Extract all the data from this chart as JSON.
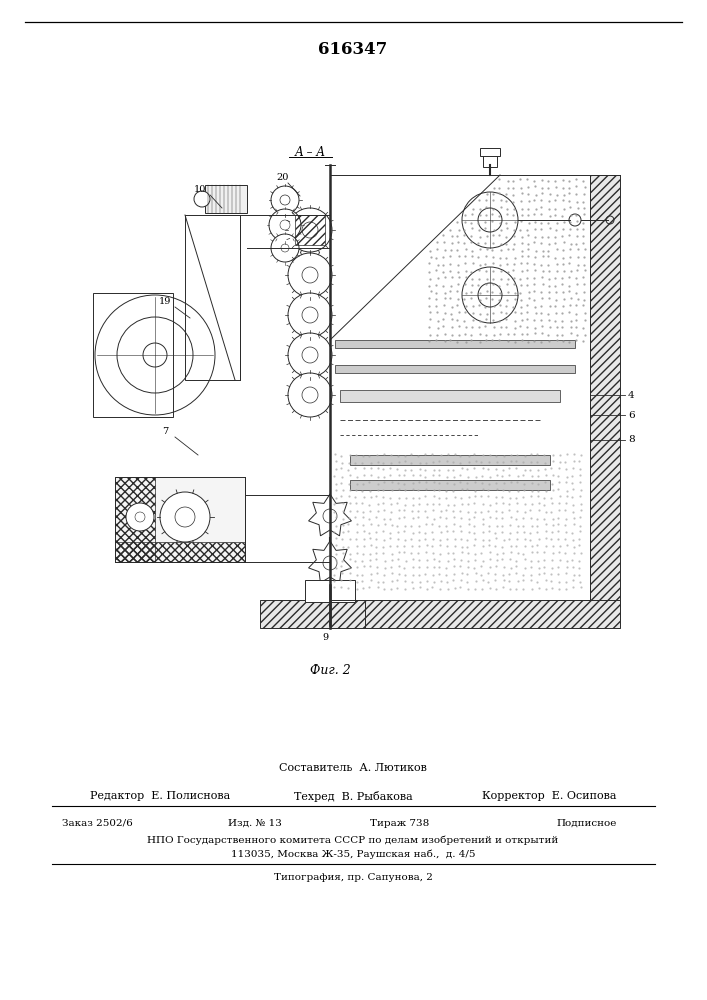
{
  "patent_number": "616347",
  "section_label": "А – А",
  "fig_label": "Фиг. 2",
  "footer_line1": "Составитель  А. Лютиков",
  "footer_line2_left": "Редактор  Е. Полиснова",
  "footer_line2_mid": "Техред  В. Рыбакова",
  "footer_line2_right": "Корректор  Е. Осипова",
  "footer_line3_col1": "Заказ 2502/6",
  "footer_line3_col2": "Изд. № 13",
  "footer_line3_col3": "Тираж 738",
  "footer_line3_col4": "Подписное",
  "footer_line4": "НПО Государственного комитета СССР по делам изобретений и открытий",
  "footer_line5": "113035, Москва Ж-35, Раушская наб.,  д. 4/5",
  "footer_line6": "Типография, пр. Сапунова, 2",
  "bg_color": "#ffffff",
  "text_color": "#000000",
  "dc": "#2a2a2a",
  "lw": 0.7
}
